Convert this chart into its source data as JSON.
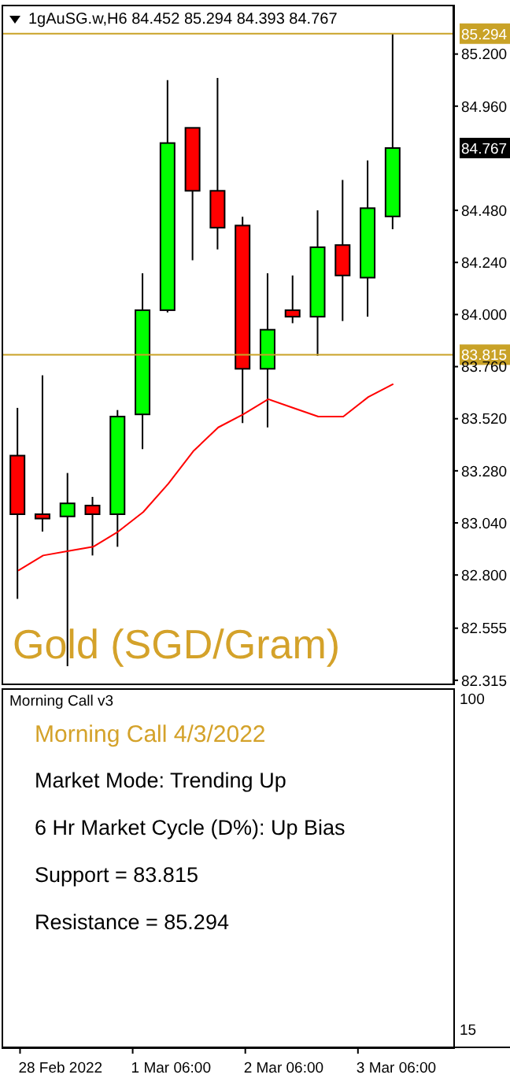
{
  "chart_data": [
    {
      "type": "candlestick",
      "title": "1gAuSG.w,H6 84.452 85.294 84.393 84.767",
      "subtitle": "Gold (SGD/Gram)",
      "ohlc": [
        [
          83.35,
          83.57,
          82.69,
          83.08
        ],
        [
          83.08,
          83.72,
          83.0,
          83.06
        ],
        [
          83.07,
          83.27,
          82.38,
          83.13
        ],
        [
          83.12,
          83.16,
          82.89,
          83.08
        ],
        [
          83.08,
          83.56,
          82.93,
          83.53
        ],
        [
          83.54,
          84.19,
          83.38,
          84.02
        ],
        [
          84.02,
          85.08,
          84.01,
          84.79
        ],
        [
          84.86,
          84.86,
          84.25,
          84.57
        ],
        [
          84.57,
          85.09,
          84.3,
          84.4
        ],
        [
          84.41,
          84.45,
          83.5,
          83.75
        ],
        [
          83.75,
          84.19,
          83.48,
          83.93
        ],
        [
          84.02,
          84.18,
          83.96,
          83.99
        ],
        [
          83.99,
          84.48,
          83.81,
          84.31
        ],
        [
          84.32,
          84.62,
          83.97,
          84.18
        ],
        [
          84.17,
          84.71,
          83.99,
          84.49
        ],
        [
          84.452,
          85.294,
          84.393,
          84.767
        ]
      ],
      "colors": [
        "#ff0000",
        "#ff0000",
        "#00ff00",
        "#ff0000",
        "#00ff00",
        "#00ff00",
        "#00ff00",
        "#ff0000",
        "#ff0000",
        "#ff0000",
        "#00ff00",
        "#ff0000",
        "#00ff00",
        "#ff0000",
        "#00ff00",
        "#00ff00"
      ],
      "series": [
        {
          "type": "line",
          "color": "#ff0000",
          "values": [
            82.82,
            82.89,
            82.91,
            82.93,
            83.0,
            83.09,
            83.22,
            83.37,
            83.48,
            83.54,
            83.61,
            83.57,
            83.53,
            83.53,
            83.62,
            83.68
          ]
        }
      ],
      "ylim": [
        82.3,
        85.42
      ],
      "yticks": [
        {
          "value": 82.315,
          "label": "82.315"
        },
        {
          "value": 82.555,
          "label": "82.555"
        },
        {
          "value": 82.8,
          "label": "82.800"
        },
        {
          "value": 83.04,
          "label": "83.040"
        },
        {
          "value": 83.28,
          "label": "83.280"
        },
        {
          "value": 83.52,
          "label": "83.520"
        },
        {
          "value": 83.76,
          "label": "83.760"
        },
        {
          "value": 84,
          "label": "84.000"
        },
        {
          "value": 84.24,
          "label": "84.240"
        },
        {
          "value": 84.48,
          "label": "84.480"
        },
        {
          "value": 84.96,
          "label": "84.960"
        },
        {
          "value": 85.2,
          "label": "85.200"
        }
      ],
      "ref_lines": [
        {
          "axis": "y",
          "value": 85.294,
          "label": "85.294",
          "color": "#c9a227"
        },
        {
          "axis": "y",
          "value": 83.815,
          "label": "83.815",
          "color": "#c9a227"
        }
      ],
      "annotations": [
        "84.767"
      ]
    },
    {
      "type": "other",
      "title": "Morning Call v3",
      "annotations": [
        "Morning Call 4/3/2022",
        "Market Mode: Trending Up",
        "6 Hr Market Cycle (D%): Up Bias",
        "Support = 83.815",
        "Resistance = 85.294",
        "100",
        "15"
      ],
      "categories": [
        "28 Feb 2022",
        null,
        null,
        null,
        "1 Mar 06:00",
        null,
        null,
        null,
        "2 Mar 06:00",
        null,
        null,
        null,
        "3 Mar 06:00",
        null,
        null,
        null
      ]
    }
  ]
}
